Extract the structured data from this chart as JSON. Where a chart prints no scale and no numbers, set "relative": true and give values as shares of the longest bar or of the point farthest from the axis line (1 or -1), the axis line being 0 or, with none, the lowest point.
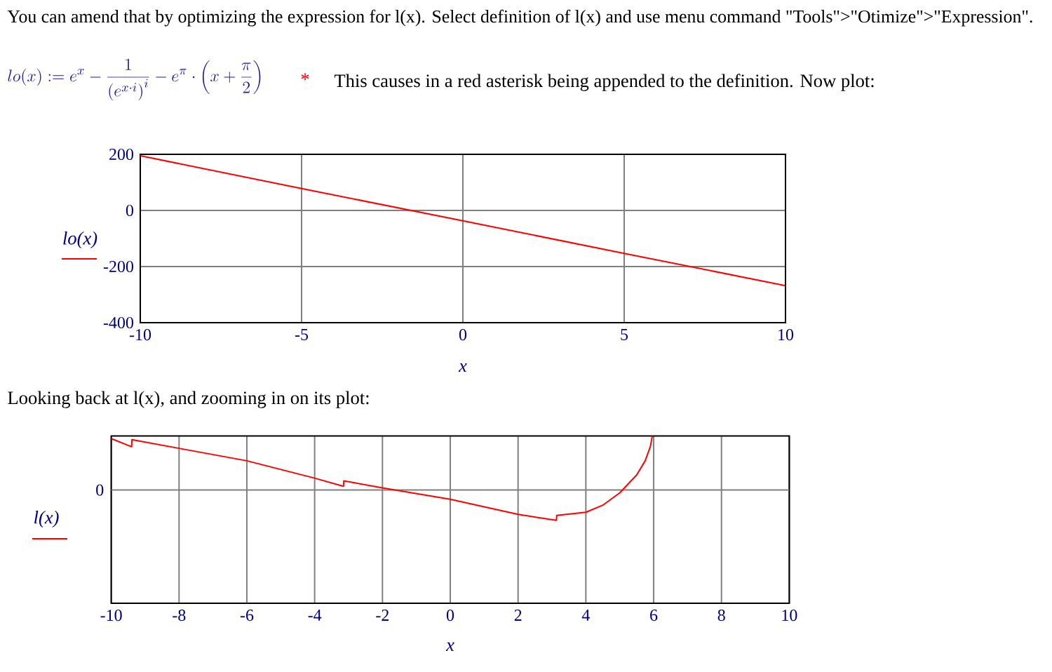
{
  "chart_data": [
    {
      "type": "line",
      "title": "You can amend that by optimizing the expression for l(x). Select definition of l(x) and use menu command \"Tools\">\"Otimize\">\"Expression\".",
      "annotations": [
        "lo(x) := e^{x} - \\frac{1}{\\left(e^{x\\cdot i}\\right)^{i}} - e^{\\pi}\\cdot\\left(x + \\frac{\\pi}{2}\\right)",
        "*",
        "This causes in a red asterisk being appended to the definition. Now plot:"
      ],
      "xlabel": "x",
      "ylabel": "lo(x)",
      "x": [
        -10,
        -5,
        0,
        5,
        10
      ],
      "values": [
        195,
        78,
        -37,
        -153,
        -268
      ],
      "color": "#ff0000",
      "xlim": [
        -10,
        10
      ],
      "ylim": [
        -400,
        200
      ],
      "xticks": [
        -10,
        -5,
        0,
        5,
        10
      ],
      "yticks": [
        -400,
        -200,
        0,
        200
      ],
      "grid": true
    },
    {
      "type": "line",
      "title": "Looking back at l(x), and zooming in on its plot:",
      "xlabel": "x",
      "ylabel": "l(x)",
      "relative": true,
      "x": [
        -10,
        -9.4,
        -9.39,
        -8,
        -6,
        -4,
        -3.15,
        -3.14,
        -2,
        0,
        2,
        3.13,
        3.14,
        4,
        4.5,
        5,
        5.5,
        5.75,
        5.9,
        5.96
      ],
      "values": [
        0.95,
        0.8,
        0.93,
        0.77,
        0.54,
        0.22,
        0.07,
        0.17,
        0.04,
        -0.17,
        -0.45,
        -0.56,
        -0.47,
        -0.41,
        -0.28,
        -0.05,
        0.28,
        0.54,
        0.8,
        1
      ],
      "color": "#ff0000",
      "xlim": [
        -10,
        10
      ],
      "xticks": [
        -10,
        -8,
        -6,
        -4,
        -2,
        0,
        2,
        4,
        6,
        8,
        10
      ],
      "grid": "x",
      "ref_lines": [
        {
          "axis": "y",
          "value": 0,
          "label": "0",
          "color": "#808080"
        }
      ]
    }
  ]
}
